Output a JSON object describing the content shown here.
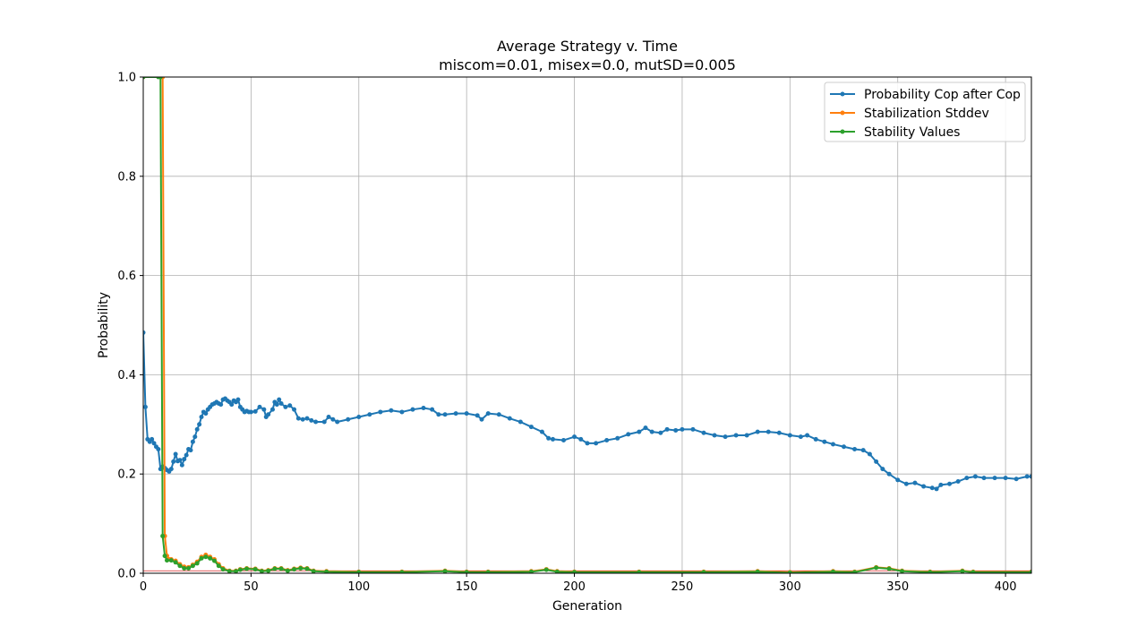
{
  "chart_data": {
    "type": "line",
    "title": "Average Strategy v. Time",
    "subtitle": "miscom=0.01, misex=0.0, mutSD=0.005",
    "xlabel": "Generation",
    "ylabel": "Probability",
    "xlim": [
      0,
      412
    ],
    "ylim": [
      0,
      1.0
    ],
    "xticks": [
      0,
      50,
      100,
      150,
      200,
      250,
      300,
      350,
      400
    ],
    "yticks": [
      0.0,
      0.2,
      0.4,
      0.6,
      0.8,
      1.0
    ],
    "xtick_labels": [
      "0",
      "50",
      "100",
      "150",
      "200",
      "250",
      "300",
      "350",
      "400"
    ],
    "ytick_labels": [
      "0.0",
      "0.2",
      "0.4",
      "0.6",
      "0.8",
      "1.0"
    ],
    "grid": true,
    "legend_position": "top-right",
    "series": [
      {
        "name": "Probability Cop after Cop",
        "color": "#1f77b4",
        "points": [
          [
            0,
            0.485
          ],
          [
            1,
            0.335
          ],
          [
            2,
            0.27
          ],
          [
            3,
            0.265
          ],
          [
            4,
            0.27
          ],
          [
            5,
            0.262
          ],
          [
            6,
            0.255
          ],
          [
            7,
            0.25
          ],
          [
            8,
            0.21
          ],
          [
            9,
            0.215
          ],
          [
            10,
            0.212
          ],
          [
            11,
            0.208
          ],
          [
            12,
            0.205
          ],
          [
            13,
            0.21
          ],
          [
            14,
            0.225
          ],
          [
            15,
            0.24
          ],
          [
            16,
            0.226
          ],
          [
            17,
            0.228
          ],
          [
            18,
            0.218
          ],
          [
            19,
            0.23
          ],
          [
            20,
            0.238
          ],
          [
            21,
            0.25
          ],
          [
            22,
            0.248
          ],
          [
            23,
            0.265
          ],
          [
            24,
            0.275
          ],
          [
            25,
            0.29
          ],
          [
            26,
            0.3
          ],
          [
            27,
            0.315
          ],
          [
            28,
            0.325
          ],
          [
            29,
            0.322
          ],
          [
            30,
            0.33
          ],
          [
            31,
            0.335
          ],
          [
            32,
            0.34
          ],
          [
            33,
            0.342
          ],
          [
            34,
            0.345
          ],
          [
            35,
            0.342
          ],
          [
            36,
            0.34
          ],
          [
            37,
            0.35
          ],
          [
            38,
            0.352
          ],
          [
            39,
            0.348
          ],
          [
            40,
            0.345
          ],
          [
            41,
            0.34
          ],
          [
            42,
            0.348
          ],
          [
            43,
            0.345
          ],
          [
            44,
            0.35
          ],
          [
            45,
            0.335
          ],
          [
            46,
            0.33
          ],
          [
            47,
            0.325
          ],
          [
            48,
            0.327
          ],
          [
            49,
            0.325
          ],
          [
            50,
            0.325
          ],
          [
            52,
            0.326
          ],
          [
            54,
            0.335
          ],
          [
            56,
            0.33
          ],
          [
            57,
            0.315
          ],
          [
            58,
            0.32
          ],
          [
            60,
            0.33
          ],
          [
            61,
            0.345
          ],
          [
            62,
            0.34
          ],
          [
            63,
            0.35
          ],
          [
            64,
            0.342
          ],
          [
            66,
            0.335
          ],
          [
            68,
            0.338
          ],
          [
            70,
            0.33
          ],
          [
            72,
            0.312
          ],
          [
            74,
            0.31
          ],
          [
            76,
            0.312
          ],
          [
            78,
            0.308
          ],
          [
            80,
            0.305
          ],
          [
            84,
            0.305
          ],
          [
            86,
            0.315
          ],
          [
            88,
            0.31
          ],
          [
            90,
            0.305
          ],
          [
            95,
            0.31
          ],
          [
            100,
            0.315
          ],
          [
            105,
            0.32
          ],
          [
            110,
            0.325
          ],
          [
            115,
            0.328
          ],
          [
            120,
            0.325
          ],
          [
            125,
            0.33
          ],
          [
            130,
            0.333
          ],
          [
            134,
            0.33
          ],
          [
            137,
            0.32
          ],
          [
            140,
            0.32
          ],
          [
            145,
            0.322
          ],
          [
            150,
            0.322
          ],
          [
            155,
            0.318
          ],
          [
            157,
            0.31
          ],
          [
            160,
            0.322
          ],
          [
            165,
            0.32
          ],
          [
            170,
            0.312
          ],
          [
            175,
            0.305
          ],
          [
            180,
            0.295
          ],
          [
            185,
            0.285
          ],
          [
            188,
            0.272
          ],
          [
            190,
            0.27
          ],
          [
            195,
            0.268
          ],
          [
            200,
            0.275
          ],
          [
            203,
            0.27
          ],
          [
            206,
            0.262
          ],
          [
            210,
            0.262
          ],
          [
            215,
            0.268
          ],
          [
            220,
            0.272
          ],
          [
            225,
            0.28
          ],
          [
            230,
            0.285
          ],
          [
            233,
            0.293
          ],
          [
            236,
            0.285
          ],
          [
            240,
            0.283
          ],
          [
            243,
            0.29
          ],
          [
            247,
            0.288
          ],
          [
            250,
            0.29
          ],
          [
            255,
            0.29
          ],
          [
            260,
            0.283
          ],
          [
            265,
            0.278
          ],
          [
            270,
            0.275
          ],
          [
            275,
            0.278
          ],
          [
            280,
            0.278
          ],
          [
            285,
            0.285
          ],
          [
            290,
            0.285
          ],
          [
            295,
            0.283
          ],
          [
            300,
            0.278
          ],
          [
            305,
            0.275
          ],
          [
            308,
            0.278
          ],
          [
            312,
            0.27
          ],
          [
            316,
            0.265
          ],
          [
            320,
            0.26
          ],
          [
            325,
            0.255
          ],
          [
            330,
            0.25
          ],
          [
            334,
            0.248
          ],
          [
            337,
            0.24
          ],
          [
            340,
            0.225
          ],
          [
            343,
            0.21
          ],
          [
            346,
            0.2
          ],
          [
            350,
            0.188
          ],
          [
            354,
            0.18
          ],
          [
            358,
            0.182
          ],
          [
            362,
            0.175
          ],
          [
            366,
            0.172
          ],
          [
            368,
            0.17
          ],
          [
            370,
            0.178
          ],
          [
            374,
            0.18
          ],
          [
            378,
            0.185
          ],
          [
            382,
            0.192
          ],
          [
            386,
            0.195
          ],
          [
            390,
            0.192
          ],
          [
            395,
            0.192
          ],
          [
            400,
            0.192
          ],
          [
            405,
            0.19
          ],
          [
            410,
            0.195
          ],
          [
            412,
            0.195
          ]
        ]
      },
      {
        "name": "Stabilization Stddev",
        "color": "#ff7f0e",
        "points": [
          [
            0,
            1.0
          ],
          [
            8,
            1.0
          ],
          [
            9,
            1.0
          ],
          [
            10,
            0.075
          ],
          [
            11,
            0.035
          ],
          [
            12,
            0.028
          ],
          [
            13,
            0.028
          ],
          [
            15,
            0.025
          ],
          [
            17,
            0.018
          ],
          [
            19,
            0.013
          ],
          [
            21,
            0.012
          ],
          [
            23,
            0.017
          ],
          [
            25,
            0.023
          ],
          [
            27,
            0.033
          ],
          [
            29,
            0.037
          ],
          [
            31,
            0.033
          ],
          [
            33,
            0.028
          ],
          [
            35,
            0.018
          ],
          [
            37,
            0.01
          ],
          [
            40,
            0.005
          ],
          [
            43,
            0.005
          ],
          [
            45,
            0.008
          ],
          [
            48,
            0.01
          ],
          [
            52,
            0.009
          ],
          [
            55,
            0.005
          ],
          [
            58,
            0.006
          ],
          [
            61,
            0.01
          ],
          [
            64,
            0.01
          ],
          [
            67,
            0.006
          ],
          [
            70,
            0.009
          ],
          [
            73,
            0.011
          ],
          [
            76,
            0.01
          ],
          [
            79,
            0.005
          ],
          [
            85,
            0.004
          ],
          [
            100,
            0.003
          ],
          [
            120,
            0.003
          ],
          [
            140,
            0.005
          ],
          [
            150,
            0.003
          ],
          [
            160,
            0.003
          ],
          [
            180,
            0.004
          ],
          [
            187,
            0.008
          ],
          [
            192,
            0.004
          ],
          [
            200,
            0.003
          ],
          [
            230,
            0.003
          ],
          [
            260,
            0.003
          ],
          [
            285,
            0.004
          ],
          [
            300,
            0.002
          ],
          [
            320,
            0.004
          ],
          [
            330,
            0.003
          ],
          [
            340,
            0.012
          ],
          [
            346,
            0.01
          ],
          [
            352,
            0.005
          ],
          [
            365,
            0.003
          ],
          [
            380,
            0.005
          ],
          [
            385,
            0.003
          ],
          [
            412,
            0.003
          ]
        ]
      },
      {
        "name": "Stability Values",
        "color": "#2ca02c",
        "points": [
          [
            0,
            1.0
          ],
          [
            7,
            1.0
          ],
          [
            8,
            1.0
          ],
          [
            9,
            0.075
          ],
          [
            10,
            0.035
          ],
          [
            11,
            0.026
          ],
          [
            13,
            0.026
          ],
          [
            15,
            0.022
          ],
          [
            17,
            0.015
          ],
          [
            19,
            0.01
          ],
          [
            21,
            0.01
          ],
          [
            23,
            0.015
          ],
          [
            25,
            0.02
          ],
          [
            27,
            0.03
          ],
          [
            29,
            0.033
          ],
          [
            31,
            0.03
          ],
          [
            33,
            0.025
          ],
          [
            35,
            0.015
          ],
          [
            37,
            0.008
          ],
          [
            40,
            0.004
          ],
          [
            43,
            0.004
          ],
          [
            45,
            0.007
          ],
          [
            48,
            0.009
          ],
          [
            52,
            0.008
          ],
          [
            55,
            0.004
          ],
          [
            58,
            0.005
          ],
          [
            61,
            0.009
          ],
          [
            64,
            0.009
          ],
          [
            67,
            0.005
          ],
          [
            70,
            0.008
          ],
          [
            73,
            0.01
          ],
          [
            76,
            0.009
          ],
          [
            79,
            0.004
          ],
          [
            85,
            0.003
          ],
          [
            100,
            0.002
          ],
          [
            120,
            0.002
          ],
          [
            140,
            0.004
          ],
          [
            150,
            0.002
          ],
          [
            160,
            0.002
          ],
          [
            180,
            0.003
          ],
          [
            187,
            0.007
          ],
          [
            192,
            0.003
          ],
          [
            200,
            0.002
          ],
          [
            230,
            0.002
          ],
          [
            260,
            0.002
          ],
          [
            285,
            0.003
          ],
          [
            300,
            0.001
          ],
          [
            320,
            0.003
          ],
          [
            330,
            0.002
          ],
          [
            340,
            0.011
          ],
          [
            346,
            0.009
          ],
          [
            352,
            0.004
          ],
          [
            365,
            0.002
          ],
          [
            380,
            0.004
          ],
          [
            385,
            0.002
          ],
          [
            412,
            0.002
          ]
        ]
      }
    ],
    "reference_line": {
      "y": 0.005,
      "color": "#d62728"
    }
  }
}
